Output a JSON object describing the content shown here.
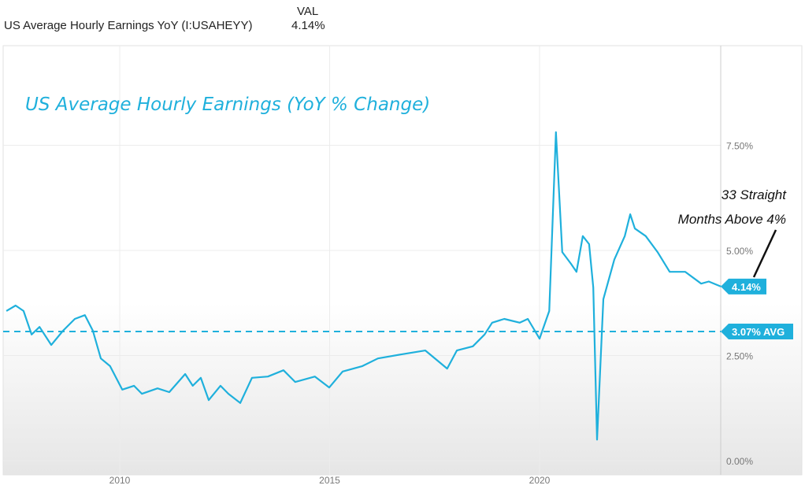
{
  "header": {
    "series_name": "US Average Hourly Earnings YoY (I:USAHEYY)",
    "value_header": "VAL",
    "value": "4.14%"
  },
  "chart_data": {
    "type": "line",
    "title": "US Average Hourly Earnings (YoY % Change)",
    "xlabel": "",
    "ylabel": "",
    "xlim": [
      2007.3,
      2024.35
    ],
    "ylim": [
      0,
      8.5
    ],
    "x_ticks": [
      2010,
      2015,
      2020
    ],
    "x_tick_labels": [
      "2010",
      "2015",
      "2020"
    ],
    "y_ticks": [
      0,
      2.5,
      5,
      7.5
    ],
    "y_tick_labels": [
      "0.00%",
      "2.50%",
      "5.00%",
      "7.50%"
    ],
    "grid": true,
    "series": [
      {
        "name": "US Average Hourly Earnings YoY",
        "color": "#1fb0dc",
        "x": [
          2007.3,
          2007.52,
          2007.71,
          2007.9,
          2008.09,
          2008.37,
          2008.65,
          2008.93,
          2009.17,
          2009.36,
          2009.55,
          2009.77,
          2010.06,
          2010.34,
          2010.53,
          2010.9,
          2011.18,
          2011.56,
          2011.74,
          2011.93,
          2012.12,
          2012.4,
          2012.59,
          2012.87,
          2013.15,
          2013.53,
          2013.9,
          2014.18,
          2014.65,
          2014.99,
          2015.31,
          2015.78,
          2016.15,
          2016.72,
          2017.28,
          2017.8,
          2018.03,
          2018.41,
          2018.69,
          2018.87,
          2019.16,
          2019.53,
          2019.72,
          2020.0,
          2020.23,
          2020.39,
          2020.54,
          2020.75,
          2020.88,
          2021.03,
          2021.18,
          2021.28,
          2021.37,
          2021.52,
          2021.78,
          2022.03,
          2022.16,
          2022.27,
          2022.53,
          2022.81,
          2023.1,
          2023.47,
          2023.85,
          2024.03,
          2024.32
        ],
        "values": [
          3.56,
          3.69,
          3.56,
          3.0,
          3.18,
          2.75,
          3.09,
          3.37,
          3.46,
          3.09,
          2.43,
          2.25,
          1.69,
          1.78,
          1.59,
          1.72,
          1.63,
          2.06,
          1.78,
          1.97,
          1.44,
          1.78,
          1.59,
          1.37,
          1.97,
          2.0,
          2.15,
          1.87,
          2.0,
          1.74,
          2.12,
          2.25,
          2.43,
          2.53,
          2.62,
          2.19,
          2.62,
          2.72,
          3.0,
          3.28,
          3.37,
          3.28,
          3.37,
          2.9,
          3.56,
          7.81,
          4.96,
          4.68,
          4.49,
          5.34,
          5.15,
          4.12,
          0.5,
          3.84,
          4.78,
          5.34,
          5.86,
          5.52,
          5.34,
          4.96,
          4.49,
          4.49,
          4.21,
          4.26,
          4.14
        ]
      }
    ],
    "average": {
      "value": 3.07,
      "label": "3.07% AVG"
    },
    "last_value_label": "4.14%",
    "annotation": {
      "line1": "33 Straight",
      "line2": "Months Above 4%"
    }
  }
}
